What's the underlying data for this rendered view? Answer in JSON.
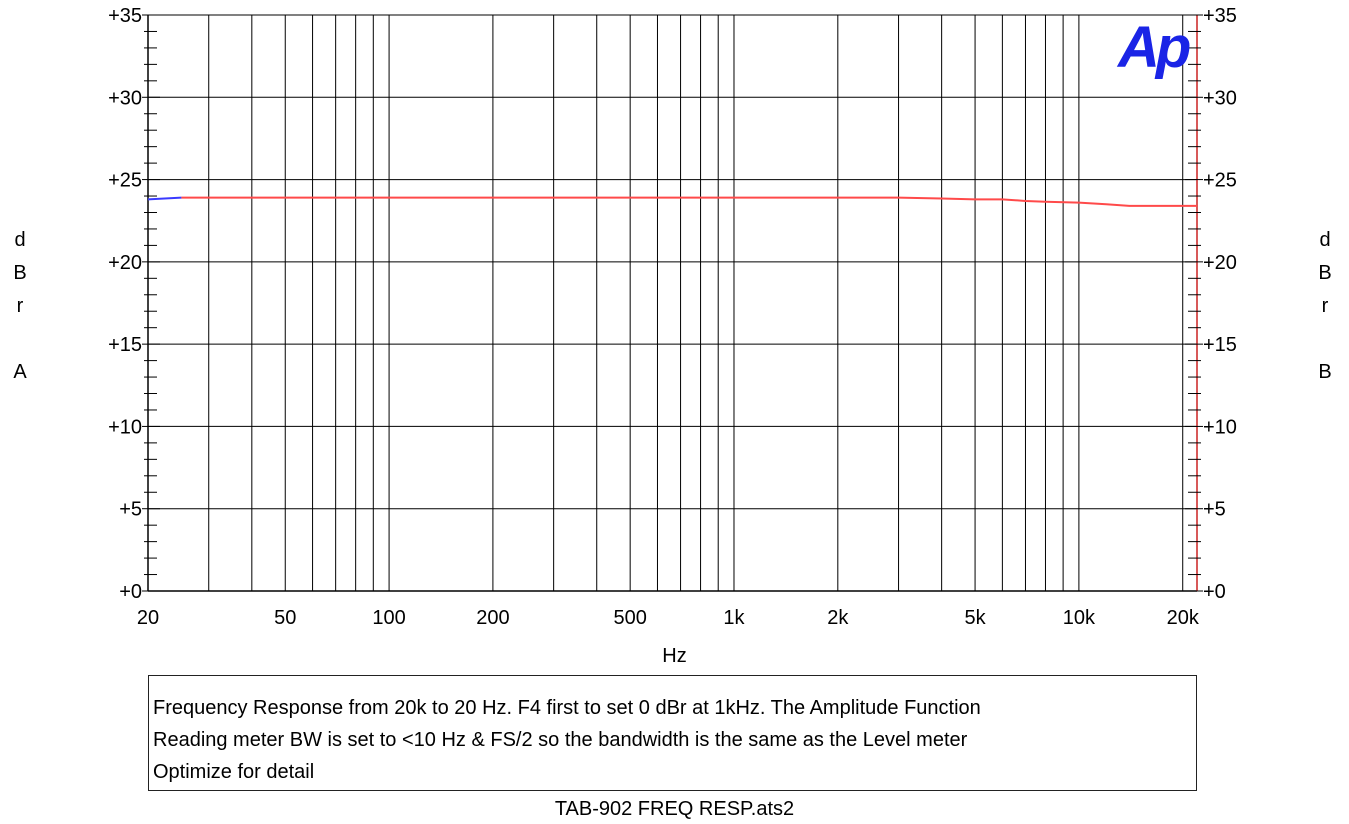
{
  "chart_data": {
    "type": "line",
    "x_scale": "log",
    "xlim": [
      20,
      22000
    ],
    "ylim": [
      0,
      35
    ],
    "y_ticks": [
      0,
      5,
      10,
      15,
      20,
      25,
      30,
      35
    ],
    "y_tick_labels": [
      "+0",
      "+5",
      "+10",
      "+15",
      "+20",
      "+25",
      "+30",
      "+35"
    ],
    "x_ticks": [
      20,
      50,
      100,
      200,
      500,
      1000,
      2000,
      5000,
      10000,
      20000
    ],
    "x_tick_labels": [
      "20",
      "50",
      "100",
      "200",
      "500",
      "1k",
      "2k",
      "5k",
      "10k",
      "20k"
    ],
    "xlabel": "Hz",
    "ylabel_left": [
      "d",
      "B",
      "r",
      "",
      "A"
    ],
    "ylabel_right": [
      "d",
      "B",
      "r",
      "",
      "B"
    ],
    "grid": true,
    "series": [
      {
        "color": "#3a3aff",
        "x": [
          20,
          25
        ],
        "y": [
          23.8,
          23.9
        ]
      },
      {
        "color": "#ff4a4a",
        "x": [
          25,
          100,
          1000,
          3000,
          4000,
          5000,
          6000,
          7000,
          8000,
          10000,
          12000,
          14000,
          17000,
          20000,
          22000
        ],
        "y": [
          23.9,
          23.9,
          23.9,
          23.9,
          23.85,
          23.8,
          23.8,
          23.7,
          23.65,
          23.6,
          23.5,
          23.4,
          23.4,
          23.4,
          23.4
        ]
      }
    ]
  },
  "logo_text": "Ap",
  "notes": [
    "Frequency Response from 20k to 20 Hz.  F4 first to set 0 dBr at 1kHz.  The Amplitude Function",
    "Reading meter BW is set to <10 Hz & FS/2 so the bandwidth is the same as the Level meter",
    "Optimize for detail"
  ],
  "filename": "TAB-902 FREQ RESP.ats2",
  "colors": {
    "grid": "#000000",
    "right_axis": "#cc2222",
    "logo": "#1a24e6"
  }
}
